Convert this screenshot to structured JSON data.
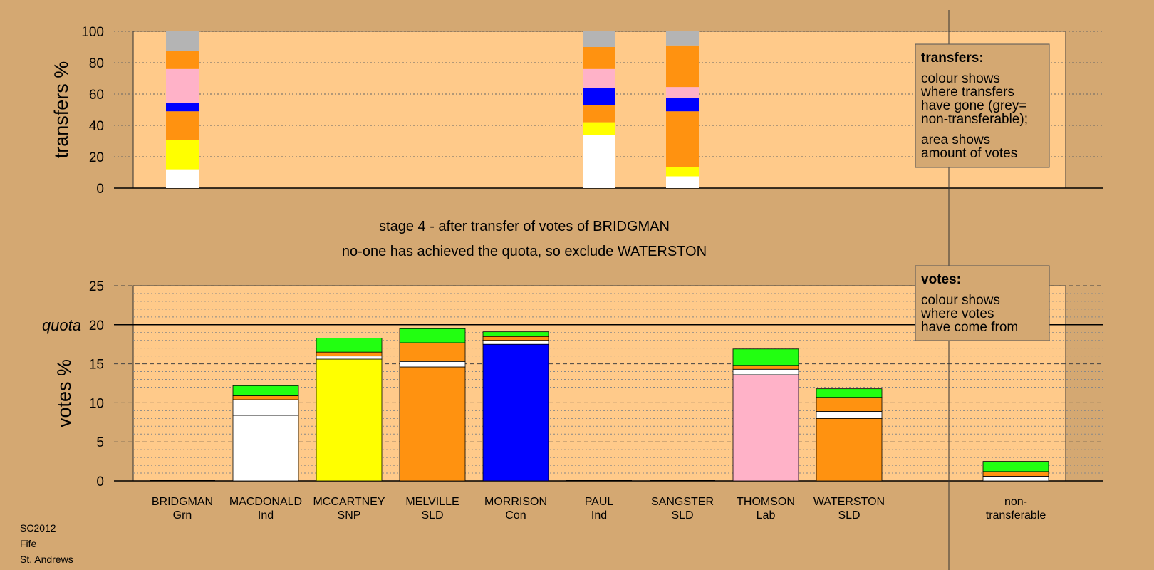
{
  "colors": {
    "background": "#d4a872",
    "plot_background": "#ffca8a",
    "white": "#ffffff",
    "SNP": "#ffff00",
    "SLD": "#ff9210",
    "Con": "#0000ff",
    "Lab": "#ffb2c8",
    "Grn": "#22ff11",
    "non_transferable": "#b4b4b4"
  },
  "chart_data": [
    {
      "type": "bar",
      "stacked": true,
      "ylabel": "transfers %",
      "ylim": [
        0,
        100
      ],
      "yticks": [
        0,
        20,
        40,
        60,
        80,
        100
      ],
      "grid": true,
      "bars": [
        {
          "category": "BRIDGMAN",
          "segments": [
            {
              "color": "white",
              "value": 12
            },
            {
              "color": "SNP",
              "value": 18.5
            },
            {
              "color": "SLD",
              "value": 18.5
            },
            {
              "color": "Con",
              "value": 5.5
            },
            {
              "color": "Lab",
              "value": 21.5
            },
            {
              "color": "SLD",
              "value": 11.5
            },
            {
              "color": "non_transferable",
              "value": 12.5
            }
          ]
        },
        {
          "category": "PAUL",
          "segments": [
            {
              "color": "white",
              "value": 34
            },
            {
              "color": "SNP",
              "value": 8
            },
            {
              "color": "SLD",
              "value": 11
            },
            {
              "color": "Con",
              "value": 11
            },
            {
              "color": "Lab",
              "value": 12
            },
            {
              "color": "SLD",
              "value": 14
            },
            {
              "color": "non_transferable",
              "value": 10
            }
          ]
        },
        {
          "category": "SANGSTER",
          "segments": [
            {
              "color": "white",
              "value": 7.5
            },
            {
              "color": "SNP",
              "value": 6
            },
            {
              "color": "SLD",
              "value": 35.5
            },
            {
              "color": "Con",
              "value": 8.5
            },
            {
              "color": "Lab",
              "value": 7
            },
            {
              "color": "SLD",
              "value": 26.5
            },
            {
              "color": "non_transferable",
              "value": 9
            }
          ]
        }
      ]
    },
    {
      "type": "bar",
      "stacked": true,
      "ylabel": "votes %",
      "ylim": [
        0,
        25
      ],
      "yticks": [
        0,
        5,
        10,
        15,
        20,
        25
      ],
      "quota": 20,
      "quota_label": "quota",
      "grid": true,
      "categories": [
        "BRIDGMAN",
        "MACDONALD",
        "MCCARTNEY",
        "MELVILLE",
        "MORRISON",
        "PAUL",
        "SANGSTER",
        "THOMSON",
        "WATERSTON",
        "non-transferable"
      ],
      "bars": [
        {
          "category": "BRIDGMAN",
          "segments": []
        },
        {
          "category": "MACDONALD",
          "segments": [
            {
              "color": "white",
              "value": 8.4
            },
            {
              "color": "white",
              "value": 2.0
            },
            {
              "color": "SLD",
              "value": 0.5
            },
            {
              "color": "Grn",
              "value": 1.3
            }
          ]
        },
        {
          "category": "MCCARTNEY",
          "segments": [
            {
              "color": "SNP",
              "value": 15.6
            },
            {
              "color": "white",
              "value": 0.4
            },
            {
              "color": "SLD",
              "value": 0.5
            },
            {
              "color": "Grn",
              "value": 1.8
            }
          ]
        },
        {
          "category": "MELVILLE",
          "segments": [
            {
              "color": "SLD",
              "value": 14.6
            },
            {
              "color": "white",
              "value": 0.7
            },
            {
              "color": "SLD",
              "value": 2.4
            },
            {
              "color": "Grn",
              "value": 1.8
            }
          ]
        },
        {
          "category": "MORRISON",
          "segments": [
            {
              "color": "Con",
              "value": 17.5
            },
            {
              "color": "white",
              "value": 0.5
            },
            {
              "color": "SLD",
              "value": 0.5
            },
            {
              "color": "Grn",
              "value": 0.6
            }
          ]
        },
        {
          "category": "PAUL",
          "segments": []
        },
        {
          "category": "SANGSTER",
          "segments": []
        },
        {
          "category": "THOMSON",
          "segments": [
            {
              "color": "Lab",
              "value": 13.6
            },
            {
              "color": "white",
              "value": 0.7
            },
            {
              "color": "SLD",
              "value": 0.5
            },
            {
              "color": "Grn",
              "value": 2.1
            }
          ]
        },
        {
          "category": "WATERSTON",
          "segments": [
            {
              "color": "SLD",
              "value": 8.0
            },
            {
              "color": "white",
              "value": 0.9
            },
            {
              "color": "SLD",
              "value": 1.8
            },
            {
              "color": "Grn",
              "value": 1.1
            }
          ]
        },
        {
          "category": "non-transferable",
          "segments": [
            {
              "color": "white",
              "value": 0.6
            },
            {
              "color": "SLD",
              "value": 0.6
            },
            {
              "color": "Grn",
              "value": 1.3
            }
          ]
        }
      ]
    }
  ],
  "stage_line1": "stage 4 - after transfer of votes of BRIDGMAN",
  "stage_line2": "no-one has achieved the quota, so exclude WATERSTON",
  "candidates": [
    {
      "name": "BRIDGMAN",
      "party": "Grn"
    },
    {
      "name": "MACDONALD",
      "party": "Ind"
    },
    {
      "name": "MCCARTNEY",
      "party": "SNP"
    },
    {
      "name": "MELVILLE",
      "party": "SLD"
    },
    {
      "name": "MORRISON",
      "party": "Con"
    },
    {
      "name": "PAUL",
      "party": "Ind"
    },
    {
      "name": "SANGSTER",
      "party": "SLD"
    },
    {
      "name": "THOMSON",
      "party": "Lab"
    },
    {
      "name": "WATERSTON",
      "party": "SLD"
    }
  ],
  "nontransferable_label": [
    "non-",
    "transferable"
  ],
  "legend_transfers": {
    "title": "transfers:",
    "lines": [
      "colour shows",
      "where transfers",
      "have gone (grey=",
      "non-transferable);",
      "area shows",
      "amount of votes"
    ]
  },
  "legend_votes": {
    "title": "votes:",
    "lines": [
      "colour shows",
      "where votes",
      "have come from"
    ]
  },
  "footer": [
    "SC2012",
    "Fife",
    "St. Andrews"
  ]
}
